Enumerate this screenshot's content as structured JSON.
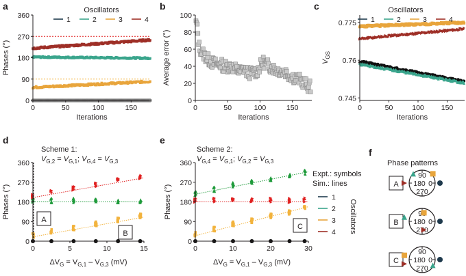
{
  "colors": {
    "osc1": "#1f3a4d",
    "osc2": "#3aa58c",
    "osc3": "#e8a53c",
    "osc4": "#9e2f27",
    "simGreen": "#1e9a3a",
    "simRed": "#e02020",
    "simOrange": "#f2b33d",
    "gray": "#c9c9c9",
    "axis": "#231f20"
  },
  "panels": {
    "a": {
      "label": "a",
      "legend_title": "Oscillators",
      "legend": [
        "1",
        "2",
        "3",
        "4"
      ],
      "ylabel": "Phases (°)",
      "xlabel": "Iterations",
      "yticks": [
        "0",
        "90",
        "180",
        "270",
        "360"
      ],
      "xticks": [
        "0",
        "50",
        "100",
        "150"
      ]
    },
    "b": {
      "label": "b",
      "ylabel": "Average error (°)",
      "xlabel": "Iterations",
      "yticks": [
        "0",
        "20",
        "40",
        "60",
        "80",
        "100"
      ],
      "xticks": [
        "0",
        "50",
        "100",
        "150"
      ]
    },
    "c": {
      "label": "c",
      "legend_title": "Oscillators",
      "legend": [
        "1",
        "2",
        "3",
        "4"
      ],
      "ylabel_main": "V",
      "ylabel_sub": "GS",
      "xlabel": "Iterations",
      "yticks": [
        "0.745",
        "0.76",
        "0.775"
      ],
      "xticks": [
        "0",
        "50",
        "100",
        "150"
      ]
    },
    "d": {
      "label": "d",
      "scheme": "Scheme 1:",
      "eq": [
        "V",
        "G,2",
        " = ",
        "V",
        "G,1",
        ";  ",
        "V",
        "G,4",
        " = ",
        "V",
        "G,3"
      ],
      "ylabel": "Phases (°)",
      "xlabel": [
        "ΔV",
        "G",
        " = V",
        "G,1",
        " – V",
        "G,3",
        " (mV)"
      ],
      "yticks": [
        "0",
        "90",
        "180",
        "270",
        "360"
      ],
      "xticks": [
        "0",
        "5",
        "10",
        "15"
      ],
      "box_A": "A",
      "box_B": "B"
    },
    "e": {
      "label": "e",
      "scheme": "Scheme 2:",
      "eq": [
        "V",
        "G,4",
        " = ",
        "V",
        "G,1",
        ";  ",
        "V",
        "G,2",
        " = ",
        "V",
        "G,3"
      ],
      "ylabel": "Phases (°)",
      "xlabel": [
        "ΔV",
        "G",
        " = V",
        "G,1",
        " – V",
        "G,3",
        " (mV)"
      ],
      "yticks": [
        "0",
        "90",
        "180",
        "270",
        "360"
      ],
      "xticks": [
        "0",
        "10",
        "20",
        "30"
      ],
      "box_C": "C",
      "legend_expt": "Expt.: symbols",
      "legend_sim": "Sim.: lines",
      "legend": [
        "1",
        "2",
        "3",
        "4"
      ],
      "legend_title": "Oscillators"
    },
    "f": {
      "label": "f",
      "title": "Phase patterns",
      "dial_ticks": [
        "90",
        "180",
        "0",
        "270"
      ],
      "patterns": [
        "A",
        "B",
        "C"
      ]
    }
  },
  "chart_data": [
    {
      "id": "a",
      "type": "scatter",
      "xlabel": "Iterations",
      "ylabel": "Phases (°)",
      "xlim": [
        0,
        180
      ],
      "ylim": [
        0,
        360
      ],
      "reference_lines": [
        {
          "oscillator": "4",
          "y": 270
        },
        {
          "oscillator": "2",
          "y": 180
        },
        {
          "oscillator": "3",
          "y": 90
        }
      ],
      "series": [
        {
          "name": "1",
          "start": 0,
          "end": 0,
          "noise": 0
        },
        {
          "name": "2",
          "start": 183,
          "end": 178,
          "noise": 3
        },
        {
          "name": "3",
          "start": 55,
          "end": 80,
          "noise": 4
        },
        {
          "name": "4",
          "start": 220,
          "end": 255,
          "noise": 4
        }
      ],
      "n_iterations": 180
    },
    {
      "id": "b",
      "type": "scatter",
      "xlabel": "Iterations",
      "ylabel": "Average error (°)",
      "xlim": [
        0,
        180
      ],
      "ylim": [
        0,
        100
      ],
      "series": [
        {
          "name": "error",
          "x": [
            2,
            4,
            6,
            8,
            10,
            12,
            15,
            20,
            25,
            30,
            35,
            40,
            45,
            50,
            55,
            60,
            65,
            70,
            75,
            80,
            85,
            90,
            95,
            100,
            105,
            110,
            115,
            120,
            125,
            130,
            135,
            140,
            145,
            150,
            155,
            160,
            165,
            170,
            175
          ],
          "y": [
            90,
            78,
            63,
            60,
            57,
            55,
            52,
            48,
            45,
            43,
            42,
            42,
            40,
            40,
            40,
            38,
            35,
            34,
            37,
            33,
            32,
            33,
            34,
            40,
            45,
            42,
            40,
            38,
            36,
            35,
            34,
            33,
            30,
            28,
            26,
            25,
            22,
            20,
            16
          ]
        }
      ]
    },
    {
      "id": "c",
      "type": "scatter",
      "xlabel": "Iterations",
      "ylabel": "VGS",
      "xlim": [
        0,
        180
      ],
      "ylim": [
        0.744,
        0.778
      ],
      "series": [
        {
          "name": "1",
          "start": 0.7595,
          "end": 0.7515
        },
        {
          "name": "2",
          "start": 0.7585,
          "end": 0.751
        },
        {
          "name": "3",
          "start": 0.7735,
          "end": 0.775
        },
        {
          "name": "4",
          "start": 0.7685,
          "end": 0.7725
        }
      ]
    },
    {
      "id": "d",
      "type": "scatter+line",
      "xlabel": "ΔVG = VG,1 – VG,3 (mV)",
      "ylabel": "Phases (°)",
      "xlim": [
        0,
        15
      ],
      "ylim": [
        0,
        360
      ],
      "x": [
        0,
        2.5,
        5.5,
        8.5,
        11.5,
        14.5
      ],
      "series": [
        {
          "name": "1",
          "values": [
            0,
            0,
            0,
            0,
            0,
            0
          ],
          "sim": [
            0,
            0
          ]
        },
        {
          "name": "2",
          "values": [
            180,
            180,
            180,
            180,
            180,
            180
          ],
          "sim": [
            180,
            180
          ]
        },
        {
          "name": "3",
          "values": [
            20,
            38,
            55,
            72,
            92,
            108
          ],
          "sim": [
            20,
            110
          ]
        },
        {
          "name": "4",
          "values": [
            200,
            218,
            235,
            252,
            272,
            288
          ],
          "sim": [
            200,
            290
          ]
        }
      ]
    },
    {
      "id": "e",
      "type": "scatter+line",
      "xlabel": "ΔVG = VG,1 – VG,3 (mV)",
      "ylabel": "Phases (°)",
      "xlim": [
        0,
        30
      ],
      "ylim": [
        0,
        360
      ],
      "x": [
        0,
        5,
        10,
        15,
        20,
        25,
        29
      ],
      "series": [
        {
          "name": "1",
          "values": [
            0,
            0,
            0,
            0,
            0,
            0,
            0
          ],
          "sim": [
            0,
            0
          ]
        },
        {
          "name": "2",
          "values": [
            210,
            232,
            252,
            265,
            282,
            298,
            310
          ],
          "sim": [
            215,
            318
          ]
        },
        {
          "name": "3",
          "values": [
            25,
            50,
            72,
            88,
            108,
            125,
            145
          ],
          "sim": [
            25,
            158
          ]
        },
        {
          "name": "4",
          "values": [
            180,
            182,
            180,
            182,
            181,
            180,
            182
          ],
          "sim": [
            180,
            180
          ]
        }
      ]
    }
  ]
}
